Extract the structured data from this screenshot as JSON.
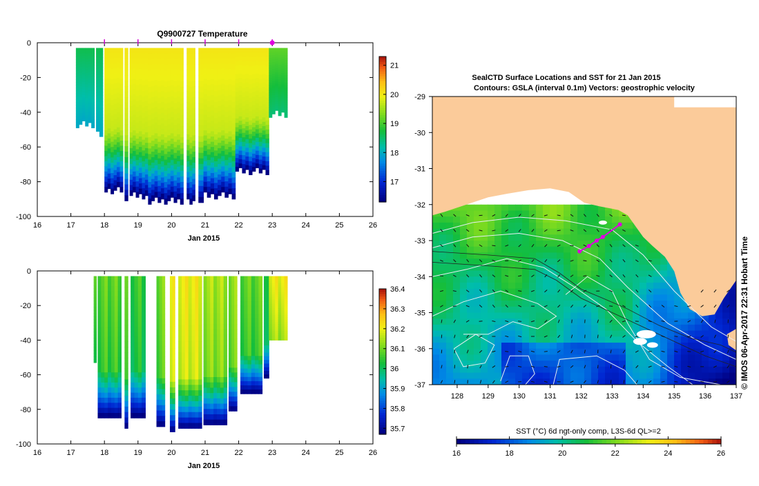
{
  "chart_data": [
    {
      "type": "heatmap",
      "title": "Q9900727  Temperature",
      "xlabel": "Jan 2015",
      "ylabel": "",
      "xlim": [
        16,
        26
      ],
      "ylim": [
        -100,
        0
      ],
      "x_ticks": [
        16,
        17,
        18,
        19,
        20,
        21,
        22,
        23,
        24,
        25,
        26
      ],
      "y_ticks": [
        0,
        -20,
        -40,
        -60,
        -80,
        -100
      ],
      "colorbar": {
        "min": 16.3,
        "max": 21.3,
        "ticks": [
          17,
          18,
          19,
          20,
          21
        ]
      },
      "profile_markers": [
        18,
        19,
        20,
        21,
        22,
        23
      ],
      "current_profile": 23,
      "profiles": [
        {
          "t0": 17.15,
          "t1": 17.7,
          "depth": -47
        },
        {
          "t0": 17.75,
          "t1": 17.95,
          "depth": -52
        },
        {
          "t0": 18.0,
          "t1": 18.55,
          "depth": -85
        },
        {
          "t0": 18.6,
          "t1": 18.7,
          "depth": -93
        },
        {
          "t0": 18.75,
          "t1": 19.3,
          "depth": -88
        },
        {
          "t0": 19.3,
          "t1": 20.35,
          "depth": -91
        },
        {
          "t0": 20.45,
          "t1": 20.7,
          "depth": -91
        },
        {
          "t0": 20.8,
          "t1": 20.95,
          "depth": -91
        },
        {
          "t0": 20.95,
          "t1": 21.9,
          "depth": -88
        },
        {
          "t0": 21.9,
          "t1": 22.9,
          "depth": -74
        },
        {
          "t0": 22.9,
          "t1": 23.45,
          "depth": -41
        }
      ]
    },
    {
      "type": "heatmap",
      "title": "",
      "xlabel": "Jan 2015",
      "ylabel": "",
      "xlim": [
        16,
        26
      ],
      "ylim": [
        -100,
        0
      ],
      "x_ticks": [
        16,
        17,
        18,
        19,
        20,
        21,
        22,
        23,
        24,
        25,
        26
      ],
      "y_ticks": [
        0,
        -20,
        -40,
        -60,
        -80,
        -100
      ],
      "colorbar": {
        "min": 35.67,
        "max": 36.4,
        "ticks": [
          35.7,
          35.8,
          35.9,
          36,
          36.1,
          36.2,
          36.3,
          36.4
        ]
      },
      "profiles": [
        {
          "t0": 17.68,
          "t1": 17.76,
          "depth": -51
        },
        {
          "t0": 17.8,
          "t1": 18.5,
          "depth": -85
        },
        {
          "t0": 18.6,
          "t1": 18.7,
          "depth": -93
        },
        {
          "t0": 18.78,
          "t1": 19.22,
          "depth": -84
        },
        {
          "t0": 19.55,
          "t1": 19.8,
          "depth": -91
        },
        {
          "t0": 19.95,
          "t1": 20.1,
          "depth": -91
        },
        {
          "t0": 20.2,
          "t1": 20.9,
          "depth": -91
        },
        {
          "t0": 20.95,
          "t1": 21.65,
          "depth": -91
        },
        {
          "t0": 21.7,
          "t1": 21.95,
          "depth": -80
        },
        {
          "t0": 22.05,
          "t1": 22.7,
          "depth": -72
        },
        {
          "t0": 22.75,
          "t1": 22.9,
          "depth": -60
        },
        {
          "t0": 22.9,
          "t1": 23.45,
          "depth": -40
        }
      ]
    },
    {
      "type": "heatmap",
      "title": "SealCTD Surface Locations and SST for 21 Jan 2015",
      "subtitle": "Contours: GSLA (interval 0.1m) Vectors: geostrophic velocity",
      "xlabel": "",
      "ylabel": "",
      "xlim": [
        127.2,
        137
      ],
      "ylim": [
        -37,
        -29
      ],
      "x_ticks": [
        128,
        129,
        130,
        131,
        132,
        133,
        134,
        135,
        136,
        137
      ],
      "y_ticks": [
        -29,
        -30,
        -31,
        -32,
        -33,
        -34,
        -35,
        -36,
        -37
      ],
      "colorbar": {
        "label": "SST (°C) 6d ngt-only comp, L3S-6d QL>=2",
        "min": 16,
        "max": 26,
        "ticks": [
          16,
          18,
          20,
          22,
          24,
          26
        ]
      },
      "seal_track": [
        {
          "lon": 131.95,
          "lat": -33.3
        },
        {
          "lon": 132.25,
          "lat": -33.15
        },
        {
          "lon": 132.5,
          "lat": -33.0
        },
        {
          "lon": 132.7,
          "lat": -32.9
        },
        {
          "lon": 133.25,
          "lat": -32.55
        }
      ]
    }
  ],
  "credit": "© IMOS 06-Apr-2017 22:31 Hobart Time",
  "colors": {
    "seal_marker": "#e000e0",
    "land": "#fbcb9a",
    "contour": "#e8eef2"
  }
}
